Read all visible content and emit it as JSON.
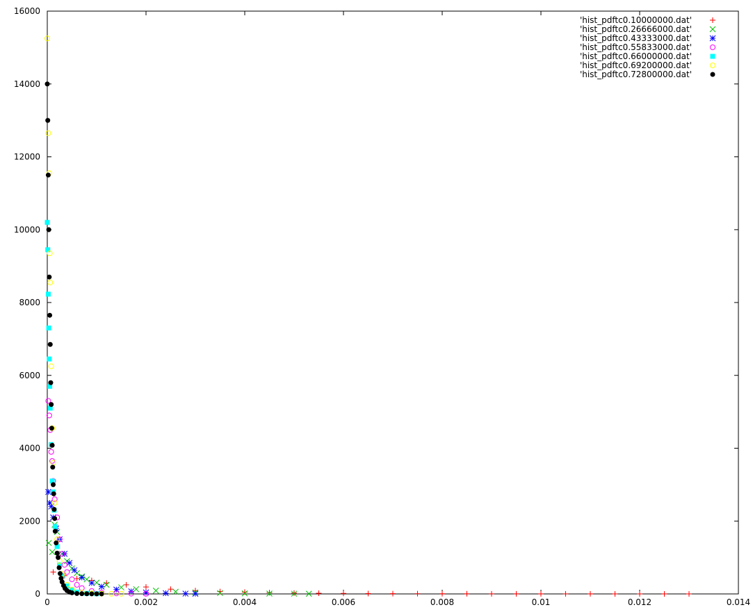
{
  "chart_data": {
    "type": "scatter",
    "xlim": [
      0,
      0.014
    ],
    "ylim": [
      0,
      16000
    ],
    "x_ticks": [
      0,
      0.002,
      0.004,
      0.006,
      0.008,
      0.01,
      0.012,
      0.014
    ],
    "x_tick_labels": [
      "0",
      "0.002",
      "0.004",
      "0.006",
      "0.008",
      "0.01",
      "0.012",
      "0.014"
    ],
    "y_ticks": [
      0,
      2000,
      4000,
      6000,
      8000,
      10000,
      12000,
      14000,
      16000
    ],
    "y_tick_labels": [
      "0",
      "2000",
      "4000",
      "6000",
      "8000",
      "10000",
      "12000",
      "14000",
      "16000"
    ],
    "grid": false,
    "legend_position": "top-right",
    "series": [
      {
        "name": "'hist_pdftc0.10000000.dat'",
        "color": "#ff0000",
        "marker": "plus",
        "x": [
          0.00012,
          0.00035,
          0.0006,
          0.0009,
          0.0012,
          0.0016,
          0.002,
          0.0025,
          0.003,
          0.0035,
          0.004,
          0.0045,
          0.005,
          0.0055,
          0.006,
          0.0065,
          0.007,
          0.0075,
          0.008,
          0.0085,
          0.009,
          0.0095,
          0.01,
          0.0105,
          0.011,
          0.0115,
          0.012,
          0.0125,
          0.013
        ],
        "y": [
          600,
          500,
          420,
          370,
          300,
          250,
          190,
          130,
          90,
          65,
          50,
          35,
          25,
          18,
          14,
          10,
          8,
          6,
          5,
          4,
          3,
          3,
          2,
          2,
          2,
          1,
          1,
          1,
          1
        ]
      },
      {
        "name": "'hist_pdftc0.26666000.dat'",
        "color": "#00c000",
        "marker": "cross",
        "x": [
          3e-05,
          0.0001,
          0.00015,
          0.0002,
          0.0003,
          0.0004,
          0.0005,
          0.0006,
          0.0007,
          0.0008,
          0.001,
          0.0012,
          0.0015,
          0.0018,
          0.0022,
          0.0026,
          0.003,
          0.0035,
          0.004,
          0.0045,
          0.005,
          0.0053
        ],
        "y": [
          1400,
          1150,
          1900,
          1700,
          1100,
          900,
          700,
          570,
          480,
          400,
          310,
          250,
          180,
          130,
          90,
          60,
          40,
          25,
          15,
          10,
          6,
          5
        ]
      },
      {
        "name": "'hist_pdftc0.43333000.dat'",
        "color": "#0000ff",
        "marker": "star",
        "x": [
          2e-05,
          5e-05,
          8e-05,
          0.00012,
          0.00018,
          0.00025,
          0.00035,
          0.00045,
          0.00055,
          0.0007,
          0.0009,
          0.0011,
          0.0014,
          0.0017,
          0.002,
          0.0024,
          0.0028,
          0.003
        ],
        "y": [
          2800,
          2500,
          2400,
          2100,
          1800,
          1500,
          1100,
          850,
          650,
          450,
          300,
          200,
          120,
          70,
          40,
          20,
          8,
          5
        ]
      },
      {
        "name": "'hist_pdftc0.55833000.dat'",
        "color": "#ff00ff",
        "marker": "circle-open",
        "x": [
          2e-05,
          4e-05,
          6e-05,
          8e-05,
          0.0001,
          0.00012,
          0.00015,
          0.0002,
          0.00025,
          0.0003,
          0.00035,
          0.0004,
          0.0005,
          0.0006,
          0.0007,
          0.0009,
          0.0011,
          0.0014,
          0.0017,
          0.002
        ],
        "y": [
          5300,
          4900,
          4500,
          3900,
          3650,
          3100,
          2600,
          2100,
          1500,
          1100,
          800,
          600,
          400,
          250,
          160,
          80,
          40,
          15,
          8,
          5
        ]
      },
      {
        "name": "'hist_pdftc0.66000000.dat'",
        "color": "#00ffff",
        "marker": "square-filled",
        "x": [
          0.0,
          1e-05,
          2e-05,
          3e-05,
          4e-05,
          5e-05,
          6e-05,
          8e-05,
          0.0001,
          0.00012,
          0.00014,
          0.00016,
          0.0002,
          0.00025,
          0.0003,
          0.0004,
          0.0005,
          0.0006,
          0.0008,
          0.001
        ],
        "y": [
          10200,
          9450,
          8230,
          7300,
          6450,
          5700,
          5100,
          4100,
          3100,
          2800,
          2300,
          1850,
          1300,
          800,
          500,
          220,
          110,
          50,
          15,
          5
        ]
      },
      {
        "name": "'hist_pdftc0.69200000.dat'",
        "color": "#ffff00",
        "marker": "circle-open",
        "x": [
          0.0,
          2e-05,
          4e-05,
          5e-05,
          6e-05,
          8e-05,
          0.0001,
          0.00012,
          0.00015,
          0.0002,
          0.00025,
          0.0003,
          0.0004,
          0.0005,
          0.0007,
          0.0009,
          0.0011,
          0.0013,
          0.0015
        ],
        "y": [
          15250,
          12650,
          11550,
          9350,
          8550,
          6250,
          4550,
          3600,
          2500,
          1500,
          900,
          550,
          250,
          120,
          40,
          15,
          8,
          5,
          3
        ]
      },
      {
        "name": "'hist_pdftc0.72800000.dat'",
        "color": "#000000",
        "marker": "circle-filled",
        "x": [
          0.0,
          1e-05,
          2e-05,
          3e-05,
          4e-05,
          5e-05,
          6e-05,
          7e-05,
          8e-05,
          9e-05,
          0.0001,
          0.00011,
          0.00012,
          0.00013,
          0.00014,
          0.00015,
          0.00016,
          0.00018,
          0.0002,
          0.00022,
          0.00024,
          0.00026,
          0.00028,
          0.0003,
          0.00033,
          0.00036,
          0.0004,
          0.00045,
          0.0005,
          0.0006,
          0.0007,
          0.0008,
          0.0009,
          0.001,
          0.0011
        ],
        "y": [
          14000,
          13000,
          11500,
          10000,
          8700,
          7650,
          6850,
          5800,
          5200,
          4550,
          4080,
          3480,
          3000,
          2750,
          2320,
          2070,
          1720,
          1400,
          1120,
          1000,
          720,
          560,
          430,
          330,
          230,
          150,
          90,
          50,
          30,
          12,
          6,
          4,
          3,
          2,
          1
        ]
      }
    ]
  }
}
